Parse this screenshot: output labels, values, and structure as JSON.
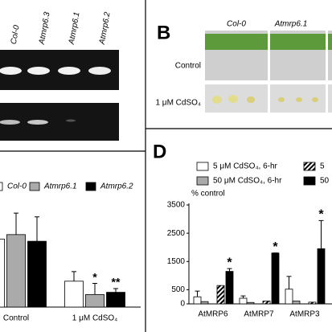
{
  "panel_a": {
    "lanes": [
      "Col-0",
      "Atmrp6.3",
      "Atmrp6.1",
      "Atmrp6.2"
    ]
  },
  "panel_b": {
    "label": "B",
    "columns": [
      "Col-0",
      "Atmrp6.1"
    ],
    "rows": [
      "Control",
      "1 μM CdSO₄"
    ]
  },
  "chart_data": [
    {
      "type": "bar",
      "categories": [
        "Control",
        "1 μM CdSO₄"
      ],
      "ylim": [
        0,
        100
      ],
      "series": [
        {
          "name": "Col-0",
          "color": "#ffffff",
          "values": [
            92,
            35
          ],
          "errors": [
            10,
            13
          ]
        },
        {
          "name": "Atmrp6.1",
          "color": "#aaaaaa",
          "values": [
            98,
            17
          ],
          "errors": [
            29,
            15
          ],
          "markers": [
            null,
            "*"
          ]
        },
        {
          "name": "Atmrp6.2",
          "color": "#000000",
          "values": [
            89,
            20
          ],
          "errors": [
            33,
            5
          ],
          "markers": [
            null,
            "**"
          ]
        }
      ]
    },
    {
      "type": "bar",
      "label": "D",
      "ylabel": "% control",
      "categories": [
        "AtMRP6",
        "AtMRP7",
        "AtMRP3"
      ],
      "ylim": [
        0,
        3500
      ],
      "yticks": [
        0,
        500,
        1500,
        2500,
        3500
      ],
      "series": [
        {
          "name": "5 μM CdSO₄, 6-hr",
          "color": "#ffffff",
          "values": [
            250,
            200,
            520
          ],
          "errors": [
            200,
            80,
            450
          ]
        },
        {
          "name": "50 μM CdSO₄, 6-hr",
          "color": "#aaaaaa",
          "values": [
            80,
            50,
            100
          ]
        },
        {
          "name": "5",
          "color": "#000000",
          "pattern": "diagonal",
          "values": [
            650,
            100,
            60
          ]
        },
        {
          "name": "50",
          "color": "#000000",
          "values": [
            1150,
            1800,
            1950
          ],
          "errors": [
            100,
            0,
            1000
          ],
          "markers": [
            "*",
            "*",
            "*"
          ]
        }
      ]
    }
  ]
}
